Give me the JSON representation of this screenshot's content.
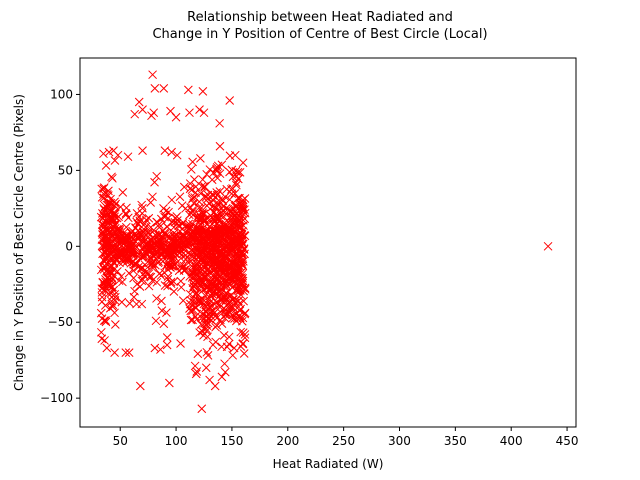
{
  "chart_data": {
    "type": "scatter",
    "title_lines": [
      "Relationship between Heat Radiated and",
      "Change in Y Position of Centre of Best Circle (Local)"
    ],
    "xlabel": "Heat Radiated (W)",
    "ylabel": "Change in Y Position of Best Circle Centre (Pixels)",
    "xlim": [
      14,
      458
    ],
    "ylim": [
      -119,
      124
    ],
    "x_ticks": [
      50,
      100,
      150,
      200,
      250,
      300,
      350,
      400,
      450
    ],
    "y_ticks": [
      -100,
      -50,
      0,
      50,
      100
    ],
    "y_tick_labels": [
      "−100",
      "−50",
      "0",
      "50",
      "100"
    ],
    "marker": "x",
    "color": "#ff0000",
    "grid": false,
    "clusters": [
      {
        "x_range": [
          33,
          46
        ],
        "y_range": [
          -68,
          62
        ],
        "count": 200
      },
      {
        "x_range": [
          46,
          112
        ],
        "y_range": [
          -30,
          30
        ],
        "count": 330
      },
      {
        "x_range": [
          46,
          112
        ],
        "y_range": [
          -70,
          65
        ],
        "count": 110
      },
      {
        "x_range": [
          112,
          162
        ],
        "y_range": [
          -95,
          80
        ],
        "count": 620
      },
      {
        "x_range": [
          118,
          160
        ],
        "y_range": [
          -40,
          40
        ],
        "count": 250
      }
    ],
    "points": [
      [
        433,
        0
      ],
      [
        79,
        113
      ],
      [
        81,
        104
      ],
      [
        89,
        104
      ],
      [
        111,
        103
      ],
      [
        124,
        102
      ],
      [
        148,
        96
      ],
      [
        67,
        95
      ],
      [
        70,
        90
      ],
      [
        112,
        88
      ],
      [
        80,
        88
      ],
      [
        78,
        86
      ],
      [
        63,
        87
      ],
      [
        121,
        90
      ],
      [
        125,
        88
      ],
      [
        95,
        89
      ],
      [
        100,
        85
      ],
      [
        139,
        81
      ],
      [
        123,
        -107
      ],
      [
        68,
        -92
      ],
      [
        94,
        -90
      ],
      [
        130,
        -88
      ],
      [
        127,
        -80
      ],
      [
        135,
        -92
      ],
      [
        118,
        -84
      ],
      [
        141,
        -86
      ],
      [
        58,
        -70
      ],
      [
        45,
        -70
      ],
      [
        38,
        -67
      ],
      [
        36,
        -62
      ],
      [
        55,
        -70
      ],
      [
        81,
        -67
      ],
      [
        86,
        -68
      ],
      [
        92,
        -65
      ],
      [
        104,
        -64
      ],
      [
        158,
        -66
      ],
      [
        160,
        -64
      ],
      [
        152,
        -67
      ],
      [
        35,
        61
      ],
      [
        40,
        62
      ],
      [
        44,
        63
      ],
      [
        48,
        60
      ],
      [
        57,
        59
      ],
      [
        70,
        63
      ],
      [
        90,
        63
      ],
      [
        96,
        62
      ],
      [
        101,
        60
      ],
      [
        153,
        60
      ],
      [
        160,
        55
      ]
    ]
  }
}
